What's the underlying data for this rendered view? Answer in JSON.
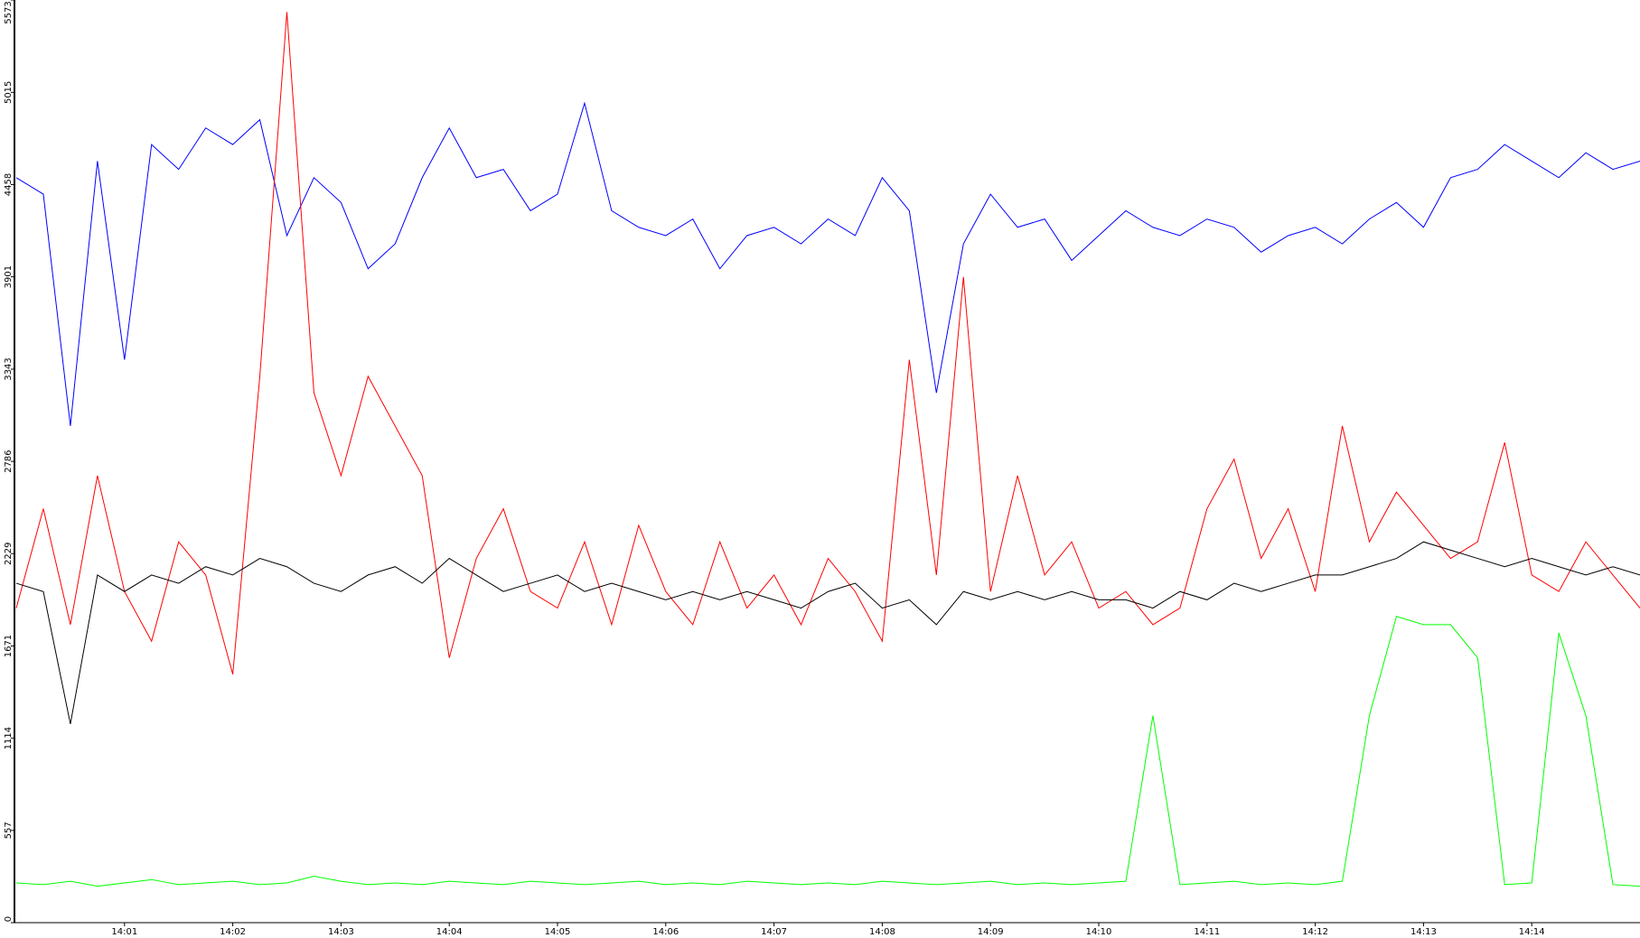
{
  "chart_data": {
    "type": "line",
    "x": [
      0,
      0.25,
      0.5,
      0.75,
      1,
      1.25,
      1.5,
      1.75,
      2,
      2.25,
      2.5,
      2.75,
      3,
      3.25,
      3.5,
      3.75,
      4,
      4.25,
      4.5,
      4.75,
      5,
      5.25,
      5.5,
      5.75,
      6,
      6.25,
      6.5,
      6.75,
      7,
      7.25,
      7.5,
      7.75,
      8,
      8.25,
      8.5,
      8.75,
      9,
      9.25,
      9.5,
      9.75,
      10,
      10.25,
      10.5,
      10.75,
      11,
      11.25,
      11.5,
      11.75,
      12,
      12.25,
      12.5,
      12.75,
      13,
      13.25,
      13.5,
      13.75,
      14,
      14.25,
      14.5,
      14.75,
      15
    ],
    "xlim": [
      0,
      15
    ],
    "xticks": [
      {
        "value": 1,
        "label": "14:01"
      },
      {
        "value": 2,
        "label": "14:02"
      },
      {
        "value": 3,
        "label": "14:03"
      },
      {
        "value": 4,
        "label": "14:04"
      },
      {
        "value": 5,
        "label": "14:05"
      },
      {
        "value": 6,
        "label": "14:06"
      },
      {
        "value": 7,
        "label": "14:07"
      },
      {
        "value": 8,
        "label": "14:08"
      },
      {
        "value": 9,
        "label": "14:09"
      },
      {
        "value": 10,
        "label": "14:10"
      },
      {
        "value": 11,
        "label": "14:11"
      },
      {
        "value": 12,
        "label": "14:12"
      },
      {
        "value": 13,
        "label": "14:13"
      },
      {
        "value": 14,
        "label": "14:14"
      }
    ],
    "ylim": [
      0,
      5573
    ],
    "yticks": [
      0,
      557,
      1114,
      1671,
      2229,
      2786,
      3343,
      3901,
      4458,
      5015,
      5573
    ],
    "series": [
      {
        "color": "#0000ff",
        "values": [
          4500,
          4400,
          3000,
          4600,
          3400,
          4700,
          4550,
          4800,
          4700,
          4850,
          4150,
          4500,
          4350,
          3950,
          4100,
          4500,
          4800,
          4500,
          4550,
          4300,
          4400,
          4950,
          4300,
          4200,
          4150,
          4250,
          3950,
          4150,
          4200,
          4100,
          4250,
          4150,
          4500,
          4300,
          3200,
          4100,
          4400,
          4200,
          4250,
          4000,
          4150,
          4300,
          4200,
          4150,
          4250,
          4200,
          4050,
          4150,
          4200,
          4100,
          4250,
          4350,
          4200,
          4500,
          4550,
          4700,
          4600,
          4500,
          4650,
          4550,
          4600
        ]
      },
      {
        "color": "#ff0000",
        "values": [
          1900,
          2500,
          1800,
          2700,
          2000,
          1700,
          2300,
          2100,
          1500,
          3300,
          5500,
          3200,
          2700,
          3300,
          3000,
          2700,
          1600,
          2200,
          2500,
          2000,
          1900,
          2300,
          1800,
          2400,
          2000,
          1800,
          2300,
          1900,
          2100,
          1800,
          2200,
          2000,
          1700,
          3400,
          2100,
          3900,
          2000,
          2700,
          2100,
          2300,
          1900,
          2000,
          1800,
          1900,
          2500,
          2800,
          2200,
          2500,
          2000,
          3000,
          2300,
          2600,
          2400,
          2200,
          2300,
          2900,
          2100,
          2000,
          2300,
          2100,
          1900
        ]
      },
      {
        "color": "#000000",
        "values": [
          2050,
          2000,
          1200,
          2100,
          2000,
          2100,
          2050,
          2150,
          2100,
          2200,
          2150,
          2050,
          2000,
          2100,
          2150,
          2050,
          2200,
          2100,
          2000,
          2050,
          2100,
          2000,
          2050,
          2000,
          1950,
          2000,
          1950,
          2000,
          1950,
          1900,
          2000,
          2050,
          1900,
          1950,
          1800,
          2000,
          1950,
          2000,
          1950,
          2000,
          1950,
          1950,
          1900,
          2000,
          1950,
          2050,
          2000,
          2050,
          2100,
          2100,
          2150,
          2200,
          2300,
          2250,
          2200,
          2150,
          2200,
          2150,
          2100,
          2150,
          2100
        ]
      },
      {
        "color": "#00ff00",
        "values": [
          240,
          230,
          250,
          220,
          240,
          260,
          230,
          240,
          250,
          230,
          240,
          280,
          250,
          230,
          240,
          230,
          250,
          240,
          230,
          250,
          240,
          230,
          240,
          250,
          230,
          240,
          230,
          250,
          240,
          230,
          240,
          230,
          250,
          240,
          230,
          240,
          250,
          230,
          240,
          230,
          240,
          250,
          1250,
          230,
          240,
          250,
          230,
          240,
          230,
          250,
          1250,
          1850,
          1800,
          1800,
          1600,
          230,
          240,
          1750,
          1250,
          230,
          220
        ]
      }
    ]
  }
}
